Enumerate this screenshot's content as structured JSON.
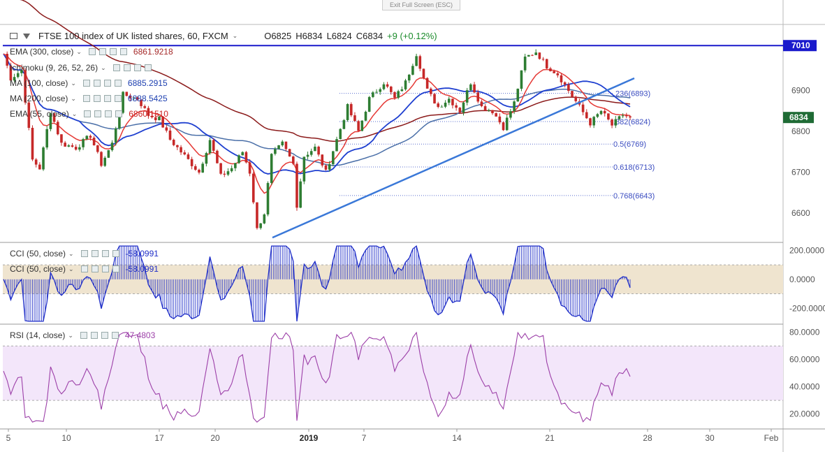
{
  "toolbar": {
    "exit_label": "Exit Full Screen (ESC)"
  },
  "header": {
    "symbol": "FTSE 100 index of UK listed shares, 60, FXCM",
    "open": "O6825",
    "high": "H6834",
    "low": "L6824",
    "close": "C6834",
    "change": "+9 (+0.12%)"
  },
  "indicators": [
    {
      "name": "EMA (300, close)",
      "value": "6861.9218",
      "color": "#a52a2a"
    },
    {
      "name": "Ichimoku (9, 26, 52, 26)",
      "value": "",
      "color": "#1e40b0"
    },
    {
      "name": "MA (100, close)",
      "value": "6885.2915",
      "color": "#1e40b0"
    },
    {
      "name": "MA (200, close)",
      "value": "6888.5425",
      "color": "#1e40b0"
    },
    {
      "name": "EMA (55, close)",
      "value": "6860.1510",
      "color": "#cc2020"
    }
  ],
  "cci_labels": [
    {
      "name": "CCI (50, close)",
      "value": "-58.0991"
    },
    {
      "name": "CCI (50, close)",
      "value": "-58.0991"
    }
  ],
  "rsi_label": {
    "name": "RSI (14, close)",
    "value": "47.4803"
  },
  "colors": {
    "up": "#2e7d32",
    "down": "#c62828",
    "ema55": "#e53935",
    "ema300": "#8b1a1a",
    "ma100": "#1e3fd0",
    "ma200": "#4a6fa8",
    "trend": "#3a78d8",
    "cci": "#1f2ec8",
    "rsi": "#9c3fa8"
  },
  "chart_data": {
    "type": "line",
    "price_axis": {
      "ticks": [
        6600,
        6700,
        6800,
        6900
      ],
      "ylim": [
        6530,
        7060
      ]
    },
    "x_ticks": [
      "5",
      "10",
      "17",
      "20",
      "2019",
      "7",
      "14",
      "21",
      "28",
      "30",
      "Feb"
    ],
    "horizontal_line": {
      "value": 7010,
      "label": "7010"
    },
    "last_price": {
      "value": 6834,
      "label": "6834"
    },
    "fibonacci": [
      {
        "label": ".236(6893)",
        "value": 6893
      },
      {
        "label": ".382(6824)",
        "value": 6824
      },
      {
        "label": "0.5(6769)",
        "value": 6769
      },
      {
        "label": "0.618(6713)",
        "value": 6713
      },
      {
        "label": "0.768(6643)",
        "value": 6643
      }
    ],
    "trendline": {
      "from": 6540,
      "to": 6930
    },
    "price_keypoints": [
      {
        "t": 0,
        "v": 6990
      },
      {
        "t": 2,
        "v": 6930
      },
      {
        "t": 5,
        "v": 6950
      },
      {
        "t": 8,
        "v": 6730
      },
      {
        "t": 10,
        "v": 6710
      },
      {
        "t": 13,
        "v": 6850
      },
      {
        "t": 16,
        "v": 6770
      },
      {
        "t": 20,
        "v": 6760
      },
      {
        "t": 24,
        "v": 6790
      },
      {
        "t": 27,
        "v": 6720
      },
      {
        "t": 30,
        "v": 6770
      },
      {
        "t": 33,
        "v": 6890
      },
      {
        "t": 37,
        "v": 6880
      },
      {
        "t": 40,
        "v": 6840
      },
      {
        "t": 43,
        "v": 6830
      },
      {
        "t": 46,
        "v": 6780
      },
      {
        "t": 50,
        "v": 6740
      },
      {
        "t": 54,
        "v": 6700
      },
      {
        "t": 57,
        "v": 6780
      },
      {
        "t": 60,
        "v": 6690
      },
      {
        "t": 63,
        "v": 6710
      },
      {
        "t": 66,
        "v": 6750
      },
      {
        "t": 68,
        "v": 6700
      },
      {
        "t": 70,
        "v": 6560
      },
      {
        "t": 72,
        "v": 6600
      },
      {
        "t": 74,
        "v": 6740
      },
      {
        "t": 77,
        "v": 6770
      },
      {
        "t": 80,
        "v": 6720
      },
      {
        "t": 81,
        "v": 6620
      },
      {
        "t": 83,
        "v": 6740
      },
      {
        "t": 86,
        "v": 6760
      },
      {
        "t": 89,
        "v": 6700
      },
      {
        "t": 92,
        "v": 6780
      },
      {
        "t": 95,
        "v": 6860
      },
      {
        "t": 98,
        "v": 6800
      },
      {
        "t": 101,
        "v": 6880
      },
      {
        "t": 105,
        "v": 6920
      },
      {
        "t": 108,
        "v": 6880
      },
      {
        "t": 111,
        "v": 6920
      },
      {
        "t": 114,
        "v": 6990
      },
      {
        "t": 117,
        "v": 6900
      },
      {
        "t": 120,
        "v": 6860
      },
      {
        "t": 123,
        "v": 6880
      },
      {
        "t": 126,
        "v": 6850
      },
      {
        "t": 129,
        "v": 6920
      },
      {
        "t": 132,
        "v": 6860
      },
      {
        "t": 135,
        "v": 6850
      },
      {
        "t": 138,
        "v": 6810
      },
      {
        "t": 141,
        "v": 6870
      },
      {
        "t": 144,
        "v": 6980
      },
      {
        "t": 147,
        "v": 6995
      },
      {
        "t": 150,
        "v": 6960
      },
      {
        "t": 153,
        "v": 6940
      },
      {
        "t": 156,
        "v": 6900
      },
      {
        "t": 159,
        "v": 6860
      },
      {
        "t": 162,
        "v": 6820
      },
      {
        "t": 165,
        "v": 6850
      },
      {
        "t": 168,
        "v": 6815
      },
      {
        "t": 171,
        "v": 6840
      },
      {
        "t": 173,
        "v": 6834
      }
    ],
    "cci_axis": {
      "ticks": [
        200,
        0,
        -200
      ],
      "band": [
        -100,
        100
      ],
      "ylim": [
        -300,
        250
      ]
    },
    "rsi_axis": {
      "ticks": [
        80,
        60,
        40,
        20
      ],
      "band": [
        30,
        70
      ],
      "ylim": [
        10,
        85
      ]
    },
    "last_cci": -58.0991,
    "last_rsi": 47.4803
  }
}
